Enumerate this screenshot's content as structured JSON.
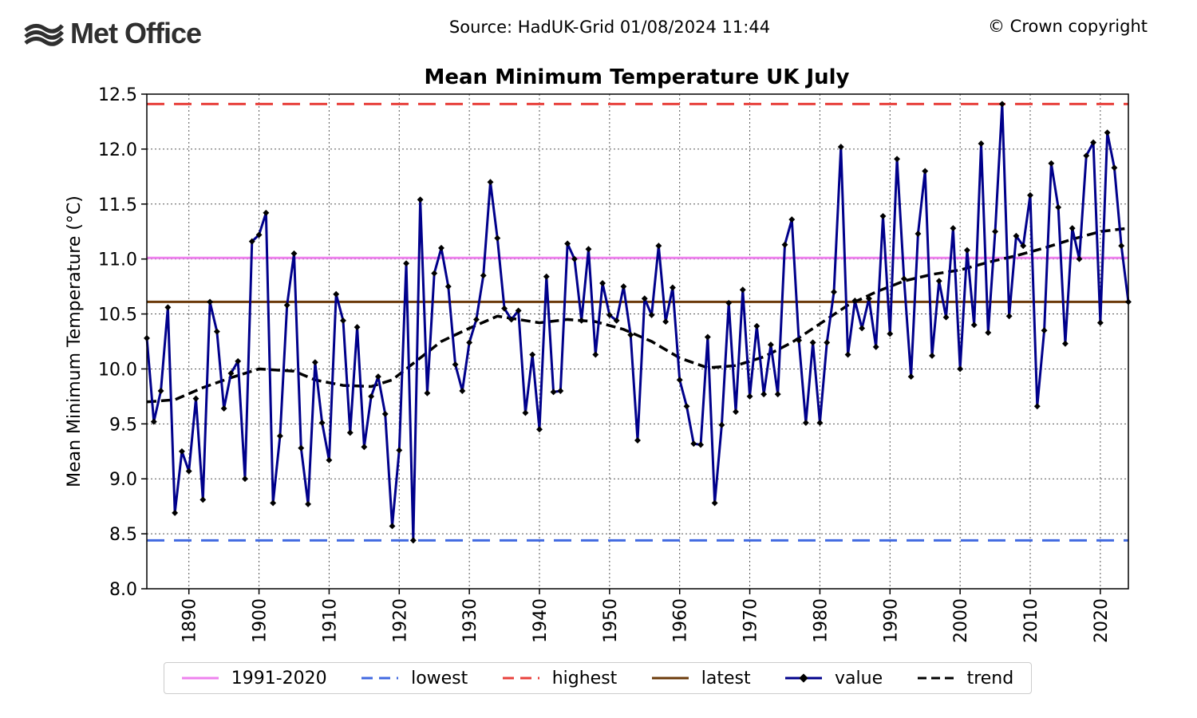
{
  "header": {
    "logo_text": "Met Office",
    "source": "Source: HadUK-Grid 01/08/2024 11:44",
    "copyright": "© Crown copyright"
  },
  "chart_data": {
    "type": "line",
    "title": "Mean Minimum Temperature UK July",
    "ylabel": "Mean Minimum Temperature (°C)",
    "xlabel": "",
    "xlim": [
      1884,
      2024
    ],
    "ylim": [
      8.0,
      12.5
    ],
    "xticks": [
      1890,
      1900,
      1910,
      1920,
      1930,
      1940,
      1950,
      1960,
      1970,
      1980,
      1990,
      2000,
      2010,
      2020
    ],
    "yticks": [
      8.0,
      8.5,
      9.0,
      9.5,
      10.0,
      10.5,
      11.0,
      11.5,
      12.0,
      12.5
    ],
    "grid": true,
    "reference_lines": {
      "avg_1991_2020": 11.01,
      "lowest": 8.44,
      "highest": 12.41,
      "latest": 10.61
    },
    "colors": {
      "avg": "#ee82ee",
      "lowest": "#4169e1",
      "highest": "#e8413c",
      "latest": "#6b3a0a",
      "value": "#00008b",
      "trend": "#000000"
    },
    "legend": [
      "1991-2020",
      "lowest",
      "highest",
      "latest",
      "value",
      "trend"
    ],
    "legend_location": "bottom",
    "series": [
      {
        "name": "value",
        "x_start": 1884,
        "values": [
          10.28,
          9.52,
          9.8,
          10.56,
          8.69,
          9.25,
          9.07,
          9.73,
          8.81,
          10.61,
          10.34,
          9.64,
          9.96,
          10.07,
          9.0,
          11.16,
          11.22,
          11.42,
          8.78,
          9.39,
          10.58,
          11.05,
          9.28,
          8.77,
          10.06,
          9.51,
          9.17,
          10.68,
          10.44,
          9.42,
          10.38,
          9.29,
          9.75,
          9.93,
          9.59,
          8.57,
          9.26,
          10.96,
          8.44,
          11.54,
          9.78,
          10.87,
          11.1,
          10.75,
          10.04,
          9.8,
          10.24,
          10.45,
          10.85,
          11.7,
          11.19,
          10.55,
          10.45,
          10.53,
          9.6,
          10.13,
          9.45,
          10.84,
          9.79,
          9.8,
          11.14,
          11.0,
          10.44,
          11.09,
          10.13,
          10.78,
          10.49,
          10.44,
          10.75,
          10.31,
          9.35,
          10.64,
          10.49,
          11.12,
          10.43,
          10.74,
          9.9,
          9.66,
          9.32,
          9.31,
          10.29,
          8.78,
          9.49,
          10.6,
          9.61,
          10.72,
          9.75,
          10.39,
          9.77,
          10.22,
          9.77,
          11.13,
          11.36,
          10.26,
          9.51,
          10.24,
          9.51,
          10.24,
          10.7,
          12.02,
          10.13,
          10.62,
          10.37,
          10.64,
          10.2,
          11.39,
          10.32,
          11.91,
          10.82,
          9.93,
          11.23,
          11.8,
          10.12,
          10.8,
          10.47,
          11.28,
          10.0,
          11.08,
          10.4,
          12.05,
          10.33,
          11.25,
          12.41,
          10.48,
          11.21,
          11.12,
          11.58,
          9.66,
          10.35,
          11.87,
          11.47,
          10.23,
          11.28,
          11.0,
          11.94,
          12.06,
          10.42,
          12.15,
          11.83,
          11.12,
          10.61
        ]
      },
      {
        "name": "trend",
        "x": [
          1884,
          1888,
          1892,
          1896,
          1900,
          1905,
          1908,
          1912,
          1916,
          1919,
          1922,
          1926,
          1930,
          1934,
          1936,
          1940,
          1944,
          1948,
          1952,
          1956,
          1960,
          1964,
          1968,
          1972,
          1976,
          1980,
          1984,
          1988,
          1992,
          1996,
          2000,
          2004,
          2008,
          2012,
          2016,
          2020,
          2024
        ],
        "values": [
          9.7,
          9.72,
          9.83,
          9.92,
          10.0,
          9.98,
          9.9,
          9.85,
          9.84,
          9.9,
          10.05,
          10.25,
          10.37,
          10.48,
          10.46,
          10.42,
          10.45,
          10.43,
          10.36,
          10.25,
          10.1,
          10.01,
          10.03,
          10.11,
          10.24,
          10.41,
          10.58,
          10.7,
          10.8,
          10.86,
          10.9,
          10.97,
          11.03,
          11.1,
          11.18,
          11.25,
          11.28
        ]
      }
    ]
  }
}
